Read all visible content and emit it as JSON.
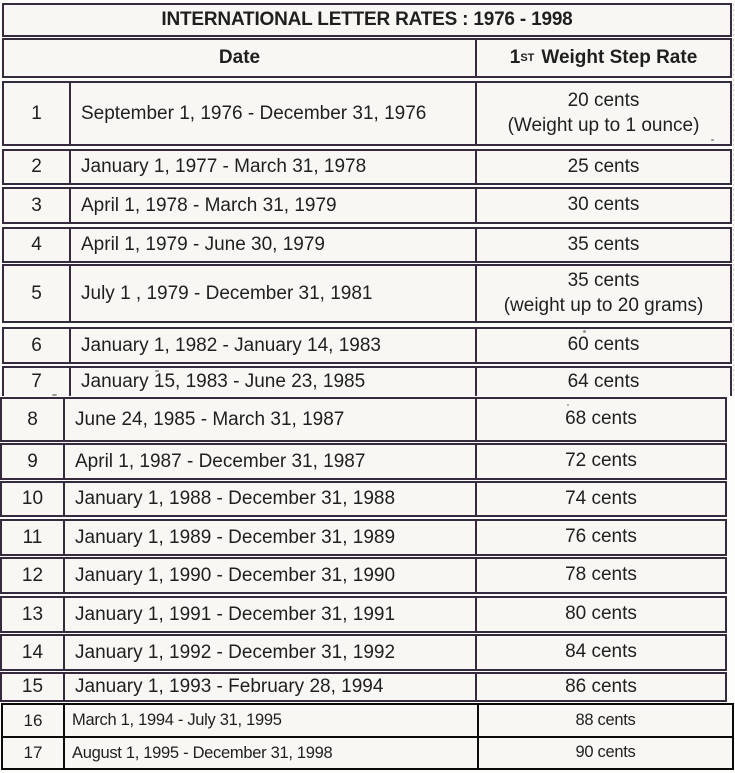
{
  "title": "INTERNATIONAL LETTER RATES : 1976 - 1998",
  "columns": {
    "date": "Date",
    "rate_num": "1",
    "rate_sup": "ST",
    "rate_label": "Weight Step Rate"
  },
  "rows": [
    {
      "num": "1",
      "date": "September 1, 1976 - December 31, 1976",
      "rate": "20 cents",
      "note": "(Weight up to 1 ounce)"
    },
    {
      "num": "2",
      "date": "January 1, 1977 - March 31, 1978",
      "rate": "25 cents"
    },
    {
      "num": "3",
      "date": "April 1, 1978 - March 31, 1979",
      "rate": "30 cents"
    },
    {
      "num": "4",
      "date": "April 1, 1979 - June 30, 1979",
      "rate": "35 cents"
    },
    {
      "num": "5",
      "date": "July 1 , 1979 - December 31, 1981",
      "rate": "35 cents",
      "note": "(weight up to 20 grams)"
    },
    {
      "num": "6",
      "date": "January 1, 1982 - January 14, 1983",
      "rate": "60 cents"
    },
    {
      "num": "7",
      "date": "January 15, 1983 - June 23, 1985",
      "rate": "64 cents"
    },
    {
      "num": "8",
      "date": "June 24, 1985 - March 31, 1987",
      "rate": "68 cents"
    },
    {
      "num": "9",
      "date": "April 1, 1987 - December 31, 1987",
      "rate": "72 cents"
    },
    {
      "num": "10",
      "date": "January 1, 1988 - December 31, 1988",
      "rate": "74 cents"
    },
    {
      "num": "11",
      "date": "January 1, 1989 - December 31, 1989",
      "rate": "76 cents"
    },
    {
      "num": "12",
      "date": "January 1, 1990 - December 31, 1990",
      "rate": "78 cents"
    },
    {
      "num": "13",
      "date": "January 1, 1991 - December 31, 1991",
      "rate": "80 cents"
    },
    {
      "num": "14",
      "date": "January 1, 1992 - December 31, 1992",
      "rate": "84 cents"
    },
    {
      "num": "15",
      "date": "January 1, 1993 - February 28, 1994",
      "rate": "86 cents"
    },
    {
      "num": "16",
      "date": "March 1, 1994 - July 31, 1995",
      "rate": "88 cents"
    },
    {
      "num": "17",
      "date": "August 1, 1995 - December 31, 1998",
      "rate": "90 cents"
    }
  ],
  "colors": {
    "border_scan": "#352a3e",
    "border_bottom_strip": "#0b0b0b",
    "paper": "#f8f7f4",
    "ink": "#1f1f1f"
  }
}
